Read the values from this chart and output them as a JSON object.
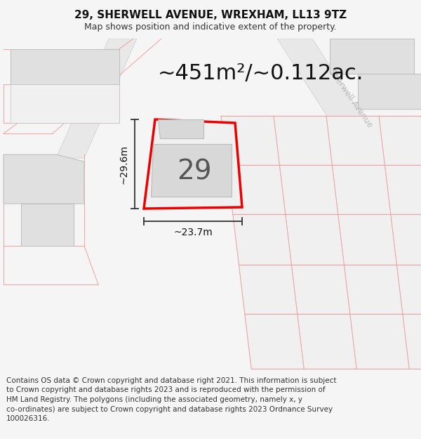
{
  "title": "29, SHERWELL AVENUE, WREXHAM, LL13 9TZ",
  "subtitle": "Map shows position and indicative extent of the property.",
  "area_text": "~451m²/~0.112ac.",
  "dimension_width": "~23.7m",
  "dimension_height": "~29.6m",
  "house_number": "29",
  "footer_text": "Contains OS data © Crown copyright and database right 2021. This information is subject to Crown copyright and database rights 2023 and is reproduced with the permission of HM Land Registry. The polygons (including the associated geometry, namely x, y co-ordinates) are subject to Crown copyright and database rights 2023 Ordnance Survey 100026316.",
  "bg_color": "#f5f5f5",
  "map_bg": "#ffffff",
  "cadast_red": "#f4a0a0",
  "plot_red": "#ee0000",
  "bldg_fill": "#e0e0e0",
  "bldg_edge": "#c0c0c0",
  "parcel_fill": "#eeeeee",
  "parcel_edge": "#d0d0d0",
  "road_fill": "#e8e8e8",
  "street_label_color": "#bbbbbb",
  "dim_color": "#333333",
  "title_fontsize": 11,
  "subtitle_fontsize": 9,
  "footer_fontsize": 7.5,
  "area_fontsize": 22,
  "house_fontsize": 28,
  "dim_fontsize": 10
}
